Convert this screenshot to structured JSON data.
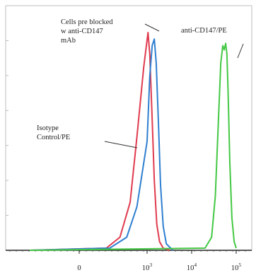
{
  "chart_data": {
    "type": "line",
    "title": "",
    "xlabel": "",
    "ylabel": "",
    "x_scale": "log",
    "x_ticks": [
      {
        "value": 0,
        "label": "0",
        "sup": ""
      },
      {
        "value": 1000,
        "label": "10",
        "sup": "3"
      },
      {
        "value": 10000,
        "label": "10",
        "sup": "4"
      },
      {
        "value": 100000,
        "label": "10",
        "sup": "5"
      }
    ],
    "y_ticks_labeled": false,
    "grid": false,
    "series": [
      {
        "name": "Isotype Control/PE",
        "color": "#e03a4e",
        "x": [
          0,
          400,
          600,
          750,
          850,
          950,
          1050,
          1150,
          1300,
          1450,
          1650,
          1900,
          2300,
          3200
        ],
        "y": [
          0,
          0.01,
          0.06,
          0.22,
          0.52,
          0.84,
          1.0,
          0.9,
          0.6,
          0.32,
          0.12,
          0.04,
          0.01,
          0
        ]
      },
      {
        "name": "Cells pre blocked w anti-CD147 mAb",
        "color": "#2f7fd0",
        "x": [
          0,
          450,
          700,
          850,
          1000,
          1150,
          1300,
          1450,
          1600,
          1800,
          2000,
          2300,
          2700,
          3800
        ],
        "y": [
          0,
          0.01,
          0.06,
          0.2,
          0.5,
          0.8,
          0.94,
          0.97,
          0.86,
          0.58,
          0.3,
          0.11,
          0.03,
          0
        ]
      },
      {
        "name": "anti-CD147/PE",
        "color": "#44c844",
        "x": [
          0,
          20000,
          28000,
          34000,
          40000,
          45000,
          50000,
          54000,
          58000,
          62000,
          66000,
          72000,
          80000,
          90000,
          100000
        ],
        "y": [
          0,
          0.01,
          0.06,
          0.25,
          0.6,
          0.86,
          0.94,
          0.92,
          0.95,
          0.9,
          0.72,
          0.4,
          0.15,
          0.04,
          0.01
        ]
      }
    ],
    "annotations": [
      {
        "lines": [
          "Cells pre blocked",
          "w anti-CD147",
          "mAb"
        ],
        "target": "Cells pre blocked w anti-CD147 mAb"
      },
      {
        "lines": [
          "anti-CD147/PE"
        ],
        "target": "anti-CD147/PE"
      },
      {
        "lines": [
          "Isotype",
          "Control/PE"
        ],
        "target": "Isotype Control/PE"
      }
    ]
  }
}
